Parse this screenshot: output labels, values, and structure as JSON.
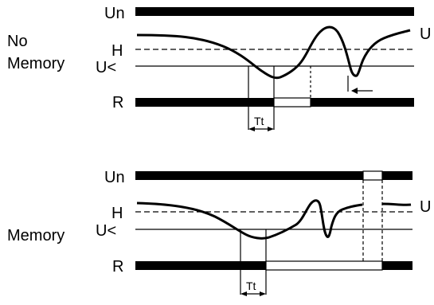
{
  "top_panel": {
    "side_label_line1": "No",
    "side_label_line2": "Memory",
    "un_label": "Un",
    "h_label": "H",
    "u_under_label": "U<",
    "u_label": "U",
    "r_label": "R",
    "tt_label": "Tt"
  },
  "bottom_panel": {
    "side_label": "Memory",
    "un_label": "Un",
    "h_label": "H",
    "u_under_label": "U<",
    "u_label": "U",
    "r_label": "R",
    "tt_label": "Tt"
  },
  "colors": {
    "ink": "#000000",
    "background": "#ffffff"
  }
}
